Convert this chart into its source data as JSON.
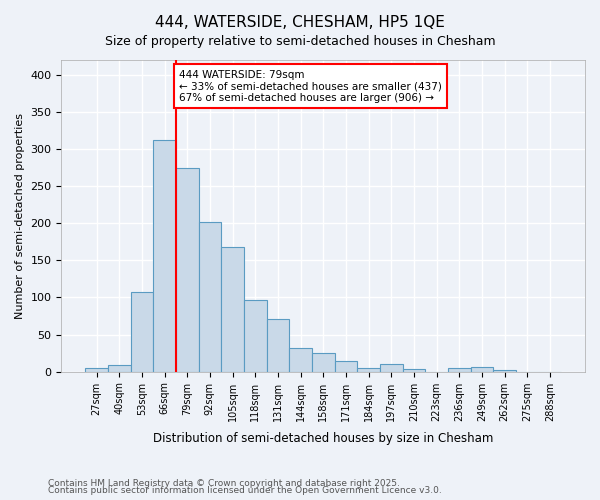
{
  "title1": "444, WATERSIDE, CHESHAM, HP5 1QE",
  "title2": "Size of property relative to semi-detached houses in Chesham",
  "xlabel": "Distribution of semi-detached houses by size in Chesham",
  "ylabel": "Number of semi-detached properties",
  "footnote1": "Contains HM Land Registry data © Crown copyright and database right 2025.",
  "footnote2": "Contains public sector information licensed under the Open Government Licence v3.0.",
  "categories": [
    "27sqm",
    "40sqm",
    "53sqm",
    "66sqm",
    "79sqm",
    "92sqm",
    "105sqm",
    "118sqm",
    "131sqm",
    "144sqm",
    "158sqm",
    "171sqm",
    "184sqm",
    "197sqm",
    "210sqm",
    "223sqm",
    "236sqm",
    "249sqm",
    "262sqm",
    "275sqm",
    "288sqm"
  ],
  "values": [
    5,
    9,
    108,
    312,
    275,
    202,
    168,
    97,
    71,
    32,
    25,
    14,
    5,
    11,
    3,
    0,
    5,
    6,
    2,
    0,
    0
  ],
  "bar_color": "#c9d9e8",
  "bar_edge_color": "#5a9bc2",
  "red_line_index": 4,
  "annotation_title": "444 WATERSIDE: 79sqm",
  "annotation_line1": "← 33% of semi-detached houses are smaller (437)",
  "annotation_line2": "67% of semi-detached houses are larger (906) →",
  "ylim": [
    0,
    420
  ],
  "background_color": "#eef2f8",
  "grid_color": "#ffffff"
}
